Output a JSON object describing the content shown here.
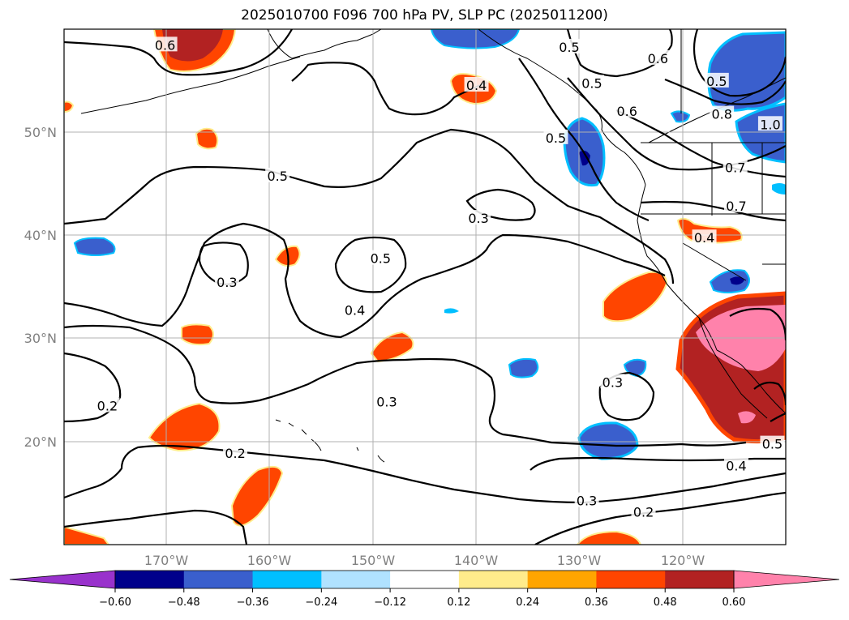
{
  "title": "2025010700 F096 700 hPa PV, SLP PC (2025011200)",
  "map": {
    "lon_range": [
      -180,
      -110
    ],
    "lat_range": [
      10,
      60
    ],
    "lat_ticks": [
      "50°N",
      "40°N",
      "30°N",
      "20°N"
    ],
    "lon_ticks": [
      "170°W",
      "160°W",
      "150°W",
      "140°W",
      "130°W",
      "120°W"
    ],
    "contour_labels": [
      {
        "text": "0.6",
        "lon": -170.2,
        "lat": 58.4
      },
      {
        "text": "0.4",
        "lon": -140.0,
        "lat": 54.5
      },
      {
        "text": "0.5",
        "lon": -131.0,
        "lat": 58.2
      },
      {
        "text": "0.6",
        "lon": -122.4,
        "lat": 57.1
      },
      {
        "text": "0.5",
        "lon": -128.8,
        "lat": 54.7
      },
      {
        "text": "0.6",
        "lon": -125.4,
        "lat": 52.0
      },
      {
        "text": "0.5",
        "lon": -116.7,
        "lat": 54.9
      },
      {
        "text": "0.8",
        "lon": -116.2,
        "lat": 51.7
      },
      {
        "text": "1.0",
        "lon": -111.5,
        "lat": 50.7
      },
      {
        "text": "0.5",
        "lon": -132.3,
        "lat": 49.4
      },
      {
        "text": "0.7",
        "lon": -114.9,
        "lat": 46.5
      },
      {
        "text": "0.7",
        "lon": -114.8,
        "lat": 42.8
      },
      {
        "text": "0.5",
        "lon": -159.3,
        "lat": 45.7
      },
      {
        "text": "0.3",
        "lon": -139.8,
        "lat": 41.6
      },
      {
        "text": "0.4",
        "lon": -117.9,
        "lat": 39.7
      },
      {
        "text": "0.5",
        "lon": -149.3,
        "lat": 37.7
      },
      {
        "text": "0.3",
        "lon": -164.2,
        "lat": 35.4
      },
      {
        "text": "0.4",
        "lon": -151.8,
        "lat": 32.7
      },
      {
        "text": "0.3",
        "lon": -126.8,
        "lat": 25.7
      },
      {
        "text": "0.2",
        "lon": -175.8,
        "lat": 23.4
      },
      {
        "text": "0.3",
        "lon": -148.7,
        "lat": 23.8
      },
      {
        "text": "0.2",
        "lon": -163.4,
        "lat": 18.8
      },
      {
        "text": "0.5",
        "lon": -111.3,
        "lat": 19.7
      },
      {
        "text": "0.4",
        "lon": -114.8,
        "lat": 17.6
      },
      {
        "text": "0.3",
        "lon": -129.3,
        "lat": 14.2
      },
      {
        "text": "0.2",
        "lon": -123.8,
        "lat": 13.1
      }
    ]
  },
  "colorbar": {
    "ticks": [
      "−0.60",
      "−0.48",
      "−0.36",
      "−0.24",
      "−0.12",
      "0.12",
      "0.24",
      "0.36",
      "0.48",
      "0.60"
    ],
    "colors": [
      "#9932cc",
      "#00008b",
      "#3a5fcd",
      "#00bfff",
      "#b0e2ff",
      "#ffffff",
      "#ffec8b",
      "#ffa500",
      "#ff4500",
      "#b22222",
      "#ff82ab"
    ]
  }
}
